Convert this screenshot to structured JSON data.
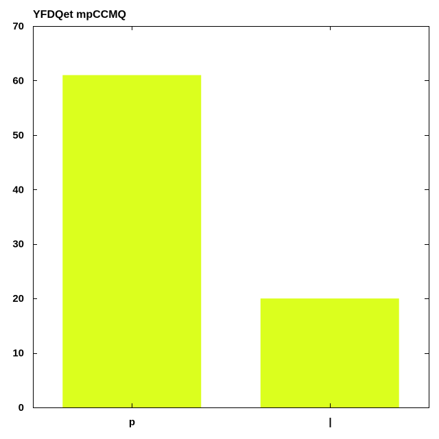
{
  "chart_data": {
    "type": "bar",
    "title": "YFDQet mpCCMQ",
    "xlabel": "",
    "ylabel": "",
    "categories": [
      "p",
      "|"
    ],
    "values": [
      61,
      20
    ],
    "ylim": [
      0,
      70
    ],
    "yticks": [
      0,
      10,
      20,
      30,
      40,
      50,
      60,
      70
    ],
    "grid": false,
    "legend": "none",
    "bar_color": "#dbff1e",
    "axis_color": "#000000"
  }
}
